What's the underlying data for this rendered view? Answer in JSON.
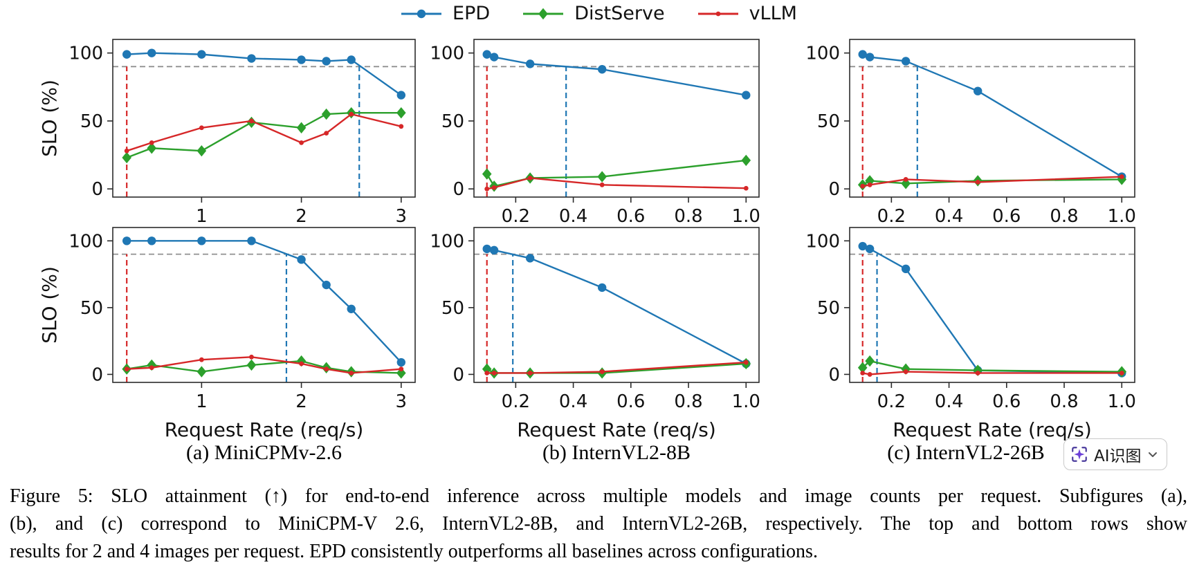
{
  "figure": {
    "legend": [
      {
        "label": "EPD",
        "color": "#1f77b4",
        "marker": "circle"
      },
      {
        "label": "DistServe",
        "color": "#2ca02c",
        "marker": "diamond"
      },
      {
        "label": "vLLM",
        "color": "#d62728",
        "marker": "dot"
      }
    ],
    "ylabel": "SLO (%)",
    "xlabel": "Request Rate (req/s)",
    "slo_threshold": 90,
    "threshold_color": "#8f8f8f",
    "subcaptions": [
      "(a) MiniCPMv-2.6",
      "(b) InternVL2-8B",
      "(c) InternVL2-26B"
    ],
    "caption_lines": [
      "Figure 5: SLO attainment (↑) for end-to-end inference across multiple models and image counts per request. Subfigures (a),",
      "(b), and (c) correspond to MiniCPM-V 2.6, InternVL2-8B, and InternVL2-26B, respectively. The top and bottom rows show",
      "results for 2 and 4 images per request. EPD consistently outperforms all baselines across configurations."
    ]
  },
  "overlay_button": {
    "label": "AI识图",
    "icons": [
      "sparkle-scan-icon",
      "chevron-down-icon"
    ],
    "accent_color": "#6b3fd8"
  },
  "chart_data": [
    {
      "type": "line",
      "position": {
        "row": 0,
        "col": 0
      },
      "xlim": [
        0.11,
        3.14
      ],
      "ylim": [
        -6,
        110
      ],
      "xticks": [
        1,
        2,
        3
      ],
      "xtick_labels": [
        "1",
        "2",
        "3"
      ],
      "yticks": [
        0,
        50,
        100
      ],
      "ytick_labels": [
        "0",
        "50",
        "100"
      ],
      "hline": 90,
      "vlines": [
        {
          "x": 0.25,
          "color": "#d62728"
        },
        {
          "x": 2.58,
          "color": "#1f77b4"
        }
      ],
      "x": [
        0.25,
        0.5,
        1,
        1.5,
        2,
        2.25,
        2.5,
        3
      ],
      "series": [
        {
          "name": "EPD",
          "values": [
            99,
            100,
            99,
            96,
            95,
            94,
            95,
            69
          ]
        },
        {
          "name": "DistServe",
          "values": [
            23,
            30,
            28,
            49,
            45,
            55,
            56,
            56
          ]
        },
        {
          "name": "vLLM",
          "values": [
            28,
            34,
            45,
            50,
            34,
            41,
            55,
            46
          ]
        }
      ]
    },
    {
      "type": "line",
      "position": {
        "row": 0,
        "col": 1
      },
      "xlim": [
        0.055,
        1.045
      ],
      "ylim": [
        -6,
        110
      ],
      "xticks": [
        0.2,
        0.4,
        0.6,
        0.8,
        1.0
      ],
      "xtick_labels": [
        "0.2",
        "0.4",
        "0.6",
        "0.8",
        "1.0"
      ],
      "yticks": [
        0,
        50,
        100
      ],
      "ytick_labels": [
        "0",
        "50",
        "100"
      ],
      "hline": 90,
      "vlines": [
        {
          "x": 0.1,
          "color": "#d62728"
        },
        {
          "x": 0.375,
          "color": "#1f77b4"
        }
      ],
      "x": [
        0.1,
        0.125,
        0.25,
        0.5,
        1.0
      ],
      "series": [
        {
          "name": "EPD",
          "values": [
            99,
            97,
            92,
            88,
            69
          ]
        },
        {
          "name": "DistServe",
          "values": [
            11,
            2,
            8,
            9,
            21
          ]
        },
        {
          "name": "vLLM",
          "values": [
            0,
            1,
            8,
            3,
            0.5
          ]
        }
      ]
    },
    {
      "type": "line",
      "position": {
        "row": 0,
        "col": 2
      },
      "xlim": [
        0.055,
        1.045
      ],
      "ylim": [
        -6,
        110
      ],
      "xticks": [
        0.2,
        0.4,
        0.6,
        0.8,
        1.0
      ],
      "xtick_labels": [
        "0.2",
        "0.4",
        "0.6",
        "0.8",
        "1.0"
      ],
      "yticks": [
        0,
        50,
        100
      ],
      "ytick_labels": [
        "0",
        "50",
        "100"
      ],
      "hline": 90,
      "vlines": [
        {
          "x": 0.1,
          "color": "#d62728"
        },
        {
          "x": 0.29,
          "color": "#1f77b4"
        }
      ],
      "x": [
        0.1,
        0.125,
        0.25,
        0.5,
        1.0
      ],
      "series": [
        {
          "name": "EPD",
          "values": [
            99,
            97,
            94,
            72,
            9
          ]
        },
        {
          "name": "DistServe",
          "values": [
            3,
            6,
            4,
            6,
            7
          ]
        },
        {
          "name": "vLLM",
          "values": [
            2,
            3,
            7,
            5,
            9
          ]
        }
      ]
    },
    {
      "type": "line",
      "position": {
        "row": 1,
        "col": 0
      },
      "xlim": [
        0.11,
        3.14
      ],
      "ylim": [
        -6,
        110
      ],
      "xticks": [
        1,
        2,
        3
      ],
      "xtick_labels": [
        "1",
        "2",
        "3"
      ],
      "yticks": [
        0,
        50,
        100
      ],
      "ytick_labels": [
        "0",
        "50",
        "100"
      ],
      "hline": 90,
      "vlines": [
        {
          "x": 0.25,
          "color": "#d62728"
        },
        {
          "x": 1.85,
          "color": "#1f77b4"
        }
      ],
      "x": [
        0.25,
        0.5,
        1,
        1.5,
        2,
        2.25,
        2.5,
        3
      ],
      "series": [
        {
          "name": "EPD",
          "values": [
            100,
            100,
            100,
            100,
            86,
            67,
            49,
            9
          ]
        },
        {
          "name": "DistServe",
          "values": [
            4,
            7,
            2,
            7,
            10,
            5,
            2,
            1
          ]
        },
        {
          "name": "vLLM",
          "values": [
            4,
            5,
            11,
            13,
            8,
            4,
            1,
            4
          ]
        }
      ]
    },
    {
      "type": "line",
      "position": {
        "row": 1,
        "col": 1
      },
      "xlim": [
        0.055,
        1.045
      ],
      "ylim": [
        -6,
        110
      ],
      "xticks": [
        0.2,
        0.4,
        0.6,
        0.8,
        1.0
      ],
      "xtick_labels": [
        "0.2",
        "0.4",
        "0.6",
        "0.8",
        "1.0"
      ],
      "yticks": [
        0,
        50,
        100
      ],
      "ytick_labels": [
        "0",
        "50",
        "100"
      ],
      "hline": 90,
      "vlines": [
        {
          "x": 0.1,
          "color": "#d62728"
        },
        {
          "x": 0.19,
          "color": "#1f77b4"
        }
      ],
      "x": [
        0.1,
        0.125,
        0.25,
        0.5,
        1.0
      ],
      "series": [
        {
          "name": "EPD",
          "values": [
            94,
            93,
            87,
            65,
            8
          ]
        },
        {
          "name": "DistServe",
          "values": [
            4,
            1,
            1,
            1,
            8
          ]
        },
        {
          "name": "vLLM",
          "values": [
            1,
            1,
            1,
            2,
            9
          ]
        }
      ]
    },
    {
      "type": "line",
      "position": {
        "row": 1,
        "col": 2
      },
      "xlim": [
        0.055,
        1.045
      ],
      "ylim": [
        -6,
        110
      ],
      "xticks": [
        0.2,
        0.4,
        0.6,
        0.8,
        1.0
      ],
      "xtick_labels": [
        "0.2",
        "0.4",
        "0.6",
        "0.8",
        "1.0"
      ],
      "yticks": [
        0,
        50,
        100
      ],
      "ytick_labels": [
        "0",
        "50",
        "100"
      ],
      "hline": 90,
      "vlines": [
        {
          "x": 0.1,
          "color": "#d62728"
        },
        {
          "x": 0.15,
          "color": "#1f77b4"
        }
      ],
      "x": [
        0.1,
        0.125,
        0.25,
        0.5,
        1.0
      ],
      "series": [
        {
          "name": "EPD",
          "values": [
            96,
            94,
            79,
            3,
            1
          ]
        },
        {
          "name": "DistServe",
          "values": [
            5,
            10,
            4,
            3,
            2
          ]
        },
        {
          "name": "vLLM",
          "values": [
            1,
            0,
            2,
            1,
            1
          ]
        }
      ]
    }
  ]
}
